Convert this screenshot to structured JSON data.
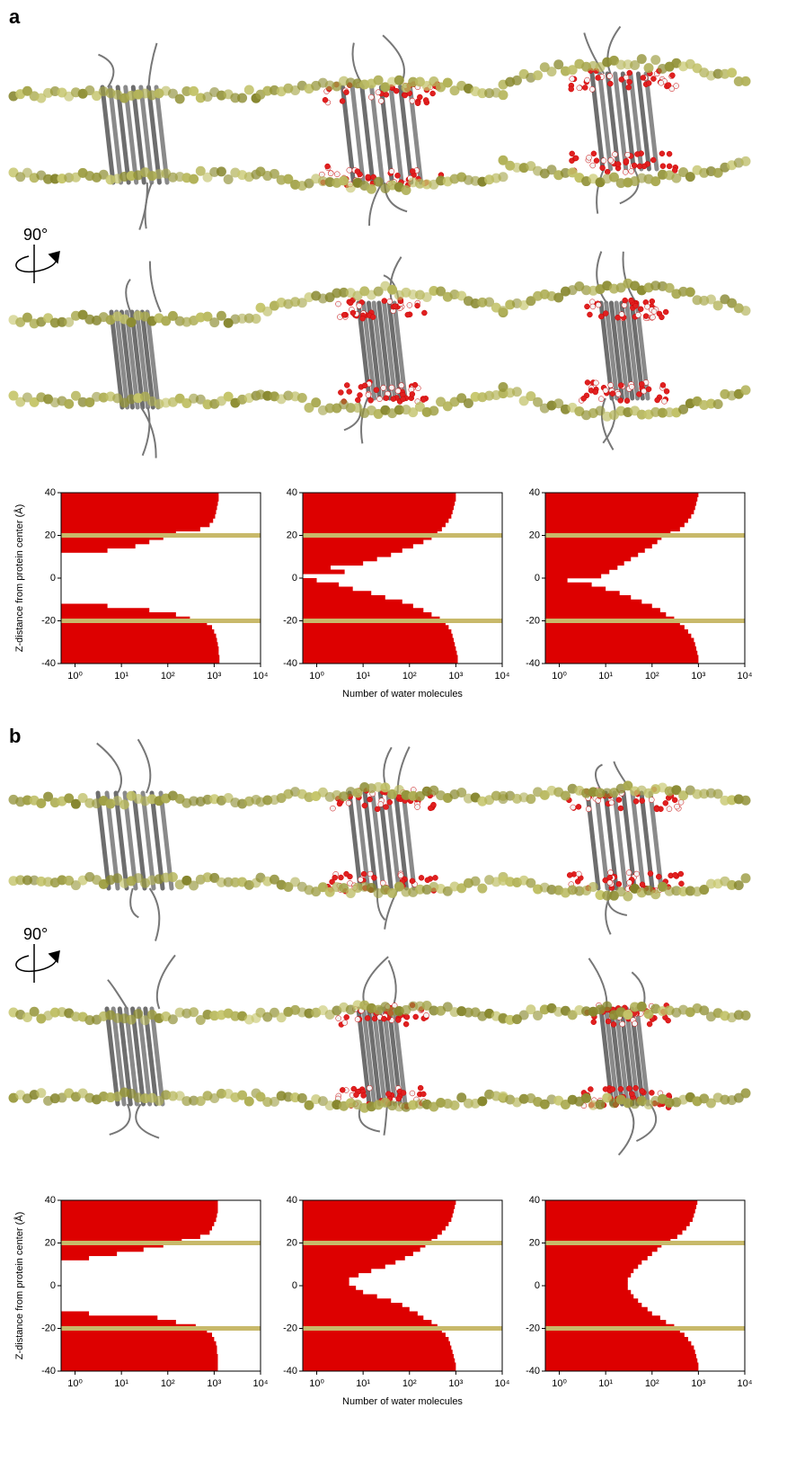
{
  "panel_labels": [
    "a",
    "b"
  ],
  "rotation_labels": [
    "90°",
    "90°"
  ],
  "chart_data": [
    {
      "type": "histogram",
      "orientation": "horizontal",
      "xscale": "log",
      "color": "#dd0000",
      "ylabel": "Z-distance from protein center (Å)",
      "bins": [
        -40,
        -38,
        -36,
        -34,
        -32,
        -30,
        -28,
        -26,
        -24,
        -22,
        -20,
        -18,
        -16,
        -14,
        -12,
        -10,
        -8,
        -6,
        -4,
        -2,
        0,
        2,
        4,
        6,
        8,
        10,
        12,
        14,
        16,
        18,
        20,
        22,
        24,
        26,
        28,
        30,
        32,
        34,
        36,
        38,
        40
      ],
      "values": [
        1300,
        1300,
        1250,
        1250,
        1200,
        1150,
        1100,
        1000,
        900,
        700,
        300,
        150,
        40,
        5,
        0,
        0,
        0,
        0,
        0,
        0,
        0,
        0,
        0,
        0,
        0,
        0,
        5,
        20,
        40,
        80,
        150,
        500,
        800,
        950,
        1050,
        1100,
        1150,
        1200,
        1250,
        1250
      ],
      "xlim": [
        0.5,
        10000
      ],
      "ylim": [
        -40,
        40
      ],
      "xticks": [
        {
          "value": 1,
          "label": "10⁰"
        },
        {
          "value": 10,
          "label": "10¹"
        },
        {
          "value": 100,
          "label": "10²"
        },
        {
          "value": 1000,
          "label": "10³"
        },
        {
          "value": 10000,
          "label": "10⁴"
        }
      ],
      "yticks": [
        -40,
        -20,
        0,
        20,
        40
      ],
      "membrane_lines": [
        -20,
        20
      ],
      "membrane_color": "#c8b96a"
    },
    {
      "type": "histogram",
      "orientation": "horizontal",
      "xscale": "log",
      "color": "#dd0000",
      "xlabel": "Number of water molecules",
      "bins": [
        -40,
        -38,
        -36,
        -34,
        -32,
        -30,
        -28,
        -26,
        -24,
        -22,
        -20,
        -18,
        -16,
        -14,
        -12,
        -10,
        -8,
        -6,
        -4,
        -2,
        0,
        2,
        4,
        6,
        8,
        10,
        12,
        14,
        16,
        18,
        20,
        22,
        24,
        26,
        28,
        30,
        32,
        34,
        36,
        38,
        40
      ],
      "values": [
        1100,
        1100,
        1050,
        1000,
        950,
        900,
        850,
        800,
        700,
        600,
        450,
        300,
        200,
        120,
        70,
        30,
        15,
        6,
        3,
        1,
        0,
        4,
        2,
        10,
        20,
        40,
        70,
        120,
        200,
        300,
        400,
        500,
        600,
        700,
        800,
        850,
        900,
        950,
        1000,
        1000
      ],
      "xlim": [
        0.5,
        10000
      ],
      "ylim": [
        -40,
        40
      ],
      "xticks": [
        {
          "value": 1,
          "label": "10⁰"
        },
        {
          "value": 10,
          "label": "10¹"
        },
        {
          "value": 100,
          "label": "10²"
        },
        {
          "value": 1000,
          "label": "10³"
        },
        {
          "value": 10000,
          "label": "10⁴"
        }
      ],
      "yticks": [
        -40,
        -20,
        0,
        20,
        40
      ],
      "membrane_lines": [
        -20,
        20
      ],
      "membrane_color": "#c8b96a"
    },
    {
      "type": "histogram",
      "orientation": "horizontal",
      "xscale": "log",
      "color": "#dd0000",
      "bins": [
        -40,
        -38,
        -36,
        -34,
        -32,
        -30,
        -28,
        -26,
        -24,
        -22,
        -20,
        -18,
        -16,
        -14,
        -12,
        -10,
        -8,
        -6,
        -4,
        -2,
        0,
        2,
        4,
        6,
        8,
        10,
        12,
        14,
        16,
        18,
        20,
        22,
        24,
        26,
        28,
        30,
        32,
        34,
        36,
        38,
        40
      ],
      "values": [
        1000,
        1000,
        950,
        900,
        850,
        800,
        700,
        600,
        500,
        400,
        300,
        200,
        150,
        100,
        60,
        35,
        20,
        10,
        5,
        1.5,
        8,
        12,
        18,
        25,
        35,
        50,
        70,
        100,
        130,
        160,
        250,
        400,
        500,
        600,
        700,
        800,
        850,
        900,
        950,
        1000
      ],
      "xlim": [
        0.5,
        10000
      ],
      "ylim": [
        -40,
        40
      ],
      "xticks": [
        {
          "value": 1,
          "label": "10⁰"
        },
        {
          "value": 10,
          "label": "10¹"
        },
        {
          "value": 100,
          "label": "10²"
        },
        {
          "value": 1000,
          "label": "10³"
        },
        {
          "value": 10000,
          "label": "10⁴"
        }
      ],
      "yticks": [
        -40,
        -20,
        0,
        20,
        40
      ],
      "membrane_lines": [
        -20,
        20
      ],
      "membrane_color": "#c8b96a"
    },
    {
      "type": "histogram",
      "orientation": "horizontal",
      "xscale": "log",
      "color": "#dd0000",
      "ylabel": "Z-distance from protein center (Å)",
      "bins": [
        -40,
        -38,
        -36,
        -34,
        -32,
        -30,
        -28,
        -26,
        -24,
        -22,
        -20,
        -18,
        -16,
        -14,
        -12,
        -10,
        -8,
        -6,
        -4,
        -2,
        0,
        2,
        4,
        6,
        8,
        10,
        12,
        14,
        16,
        18,
        20,
        22,
        24,
        26,
        28,
        30,
        32,
        34,
        36,
        38,
        40
      ],
      "values": [
        1200,
        1200,
        1200,
        1200,
        1150,
        1150,
        1100,
        1000,
        900,
        700,
        400,
        150,
        60,
        2,
        0,
        0,
        0,
        0,
        0,
        0,
        0,
        0,
        0,
        0,
        0,
        0,
        2,
        8,
        30,
        80,
        200,
        500,
        800,
        900,
        1000,
        1100,
        1150,
        1200,
        1200,
        1200
      ],
      "xlim": [
        0.5,
        10000
      ],
      "ylim": [
        -40,
        40
      ],
      "xticks": [
        {
          "value": 1,
          "label": "10⁰"
        },
        {
          "value": 10,
          "label": "10¹"
        },
        {
          "value": 100,
          "label": "10²"
        },
        {
          "value": 1000,
          "label": "10³"
        },
        {
          "value": 10000,
          "label": "10⁴"
        }
      ],
      "yticks": [
        -40,
        -20,
        0,
        20,
        40
      ],
      "membrane_lines": [
        -20,
        20
      ],
      "membrane_color": "#c8b96a"
    },
    {
      "type": "histogram",
      "orientation": "horizontal",
      "xscale": "log",
      "color": "#dd0000",
      "xlabel": "Number of water molecules",
      "bins": [
        -40,
        -38,
        -36,
        -34,
        -32,
        -30,
        -28,
        -26,
        -24,
        -22,
        -20,
        -18,
        -16,
        -14,
        -12,
        -10,
        -8,
        -6,
        -4,
        -2,
        0,
        2,
        4,
        6,
        8,
        10,
        12,
        14,
        16,
        18,
        20,
        22,
        24,
        26,
        28,
        30,
        32,
        34,
        36,
        38,
        40
      ],
      "values": [
        1000,
        1000,
        950,
        900,
        850,
        800,
        750,
        700,
        600,
        500,
        400,
        300,
        200,
        150,
        100,
        70,
        40,
        20,
        10,
        7,
        5,
        5,
        8,
        15,
        30,
        50,
        80,
        120,
        170,
        220,
        300,
        400,
        500,
        600,
        700,
        800,
        850,
        900,
        950,
        1000
      ],
      "xlim": [
        0.5,
        10000
      ],
      "ylim": [
        -40,
        40
      ],
      "xticks": [
        {
          "value": 1,
          "label": "10⁰"
        },
        {
          "value": 10,
          "label": "10¹"
        },
        {
          "value": 100,
          "label": "10²"
        },
        {
          "value": 1000,
          "label": "10³"
        },
        {
          "value": 10000,
          "label": "10⁴"
        }
      ],
      "yticks": [
        -40,
        -20,
        0,
        20,
        40
      ],
      "membrane_lines": [
        -20,
        20
      ],
      "membrane_color": "#c8b96a"
    },
    {
      "type": "histogram",
      "orientation": "horizontal",
      "xscale": "log",
      "color": "#dd0000",
      "bins": [
        -40,
        -38,
        -36,
        -34,
        -32,
        -30,
        -28,
        -26,
        -24,
        -22,
        -20,
        -18,
        -16,
        -14,
        -12,
        -10,
        -8,
        -6,
        -4,
        -2,
        0,
        2,
        4,
        6,
        8,
        10,
        12,
        14,
        16,
        18,
        20,
        22,
        24,
        26,
        28,
        30,
        32,
        34,
        36,
        38,
        40
      ],
      "values": [
        1000,
        1000,
        950,
        900,
        850,
        800,
        700,
        600,
        500,
        400,
        300,
        200,
        150,
        100,
        80,
        60,
        50,
        40,
        35,
        30,
        30,
        30,
        35,
        40,
        50,
        60,
        80,
        100,
        130,
        160,
        250,
        350,
        450,
        550,
        650,
        750,
        800,
        850,
        900,
        950
      ],
      "xlim": [
        0.5,
        10000
      ],
      "ylim": [
        -40,
        40
      ],
      "xticks": [
        {
          "value": 1,
          "label": "10⁰"
        },
        {
          "value": 10,
          "label": "10¹"
        },
        {
          "value": 100,
          "label": "10²"
        },
        {
          "value": 1000,
          "label": "10³"
        },
        {
          "value": 10000,
          "label": "10⁴"
        }
      ],
      "yticks": [
        -40,
        -20,
        0,
        20,
        40
      ],
      "membrane_lines": [
        -20,
        20
      ],
      "membrane_color": "#c8b96a"
    }
  ]
}
